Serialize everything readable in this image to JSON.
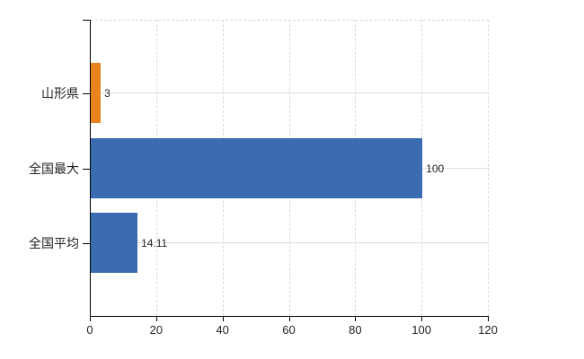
{
  "chart_data": {
    "type": "bar",
    "orientation": "horizontal",
    "title": "",
    "categories": [
      "山形県",
      "全国最大",
      "全国平均"
    ],
    "values": [
      3,
      100,
      14.11
    ],
    "value_labels": [
      "3",
      "100",
      "14.11"
    ],
    "series_colors": [
      "#e8851f",
      "#3a6caf",
      "#3a6caf"
    ],
    "x_ticks": [
      0,
      20,
      40,
      60,
      80,
      100,
      120
    ],
    "x_tick_labels": [
      "0",
      "20",
      "40",
      "60",
      "80",
      "100",
      "120"
    ],
    "xlim": [
      0,
      120
    ],
    "grid": "on",
    "legend": "none"
  },
  "colors": {
    "background": "#ffffff",
    "axis": "#000000",
    "gridline_vertical": "#d9d9d9",
    "gridline_horizontal": "#dddddd",
    "text": "#222222",
    "bar_blue": "#3a6caf",
    "bar_orange": "#e8851f"
  }
}
